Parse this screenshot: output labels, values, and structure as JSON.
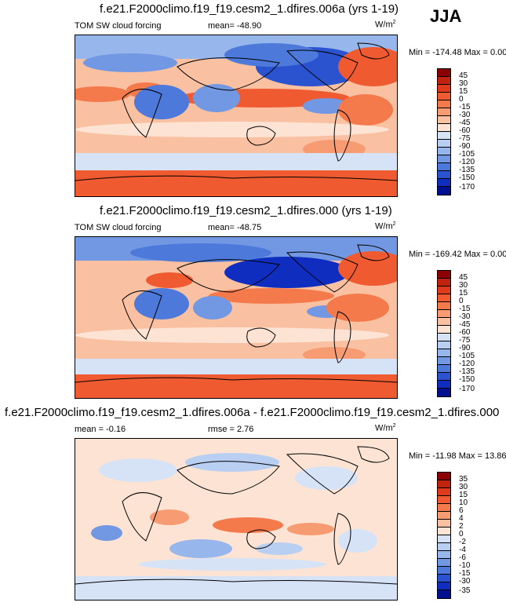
{
  "season": "JJA",
  "panels": [
    {
      "title": "f.e21.F2000climo.f19_f19.cesm2_1.dfires.006a (yrs 1-19)",
      "variable": "TOM SW cloud forcing",
      "mean_label": "mean=",
      "mean_value": "-48.90",
      "units": "W/m",
      "units_exp": "2",
      "minmax": "Min = -174.48 Max =   0.00",
      "colorbar_ticks": [
        "45",
        "30",
        "15",
        "0",
        "-15",
        "-30",
        "-45",
        "-60",
        "-75",
        "-90",
        "-105",
        "-120",
        "-135",
        "-150",
        "-170"
      ]
    },
    {
      "title": "f.e21.F2000climo.f19_f19.cesm2_1.dfires.000 (yrs 1-19)",
      "variable": "TOM SW cloud forcing",
      "mean_label": "mean=",
      "mean_value": "-48.75",
      "units": "W/m",
      "units_exp": "2",
      "minmax": "Min = -169.42 Max =   0.00",
      "colorbar_ticks": [
        "45",
        "30",
        "15",
        "0",
        "-15",
        "-30",
        "-45",
        "-60",
        "-75",
        "-90",
        "-105",
        "-120",
        "-135",
        "-150",
        "-170"
      ]
    },
    {
      "title": "f.e21.F2000climo.f19_f19.cesm2_1.dfires.006a - f.e21.F2000climo.f19_f19.cesm2_1.dfires.000",
      "mean_label": "mean =",
      "mean_value": "-0.16",
      "rmse_label": "rmse =",
      "rmse_value": "2.76",
      "units": "W/m",
      "units_exp": "2",
      "minmax": "Min = -11.98 Max = 13.86",
      "colorbar_ticks": [
        "35",
        "30",
        "15",
        "10",
        "6",
        "4",
        "2",
        "0",
        "-2",
        "-4",
        "-6",
        "-10",
        "-15",
        "-30",
        "-35"
      ]
    }
  ],
  "colors": {
    "abs_scale": [
      "#8b0000",
      "#c0240f",
      "#e03a1c",
      "#ef5a30",
      "#f47a4c",
      "#f79c72",
      "#f9c1a2",
      "#fce3d3",
      "#d6e3f7",
      "#b8cff2",
      "#96b6ec",
      "#7298e3",
      "#4c79da",
      "#2b52cf",
      "#0f2ec0",
      "#00108f"
    ],
    "diff_scale": [
      "#8b0000",
      "#c0240f",
      "#e03a1c",
      "#ef5a30",
      "#f47a4c",
      "#f79c72",
      "#f9c1a2",
      "#fce3d3",
      "#d6e3f7",
      "#b8cff2",
      "#96b6ec",
      "#7298e3",
      "#4c79da",
      "#2b52cf",
      "#0f2ec0",
      "#00108f"
    ]
  }
}
